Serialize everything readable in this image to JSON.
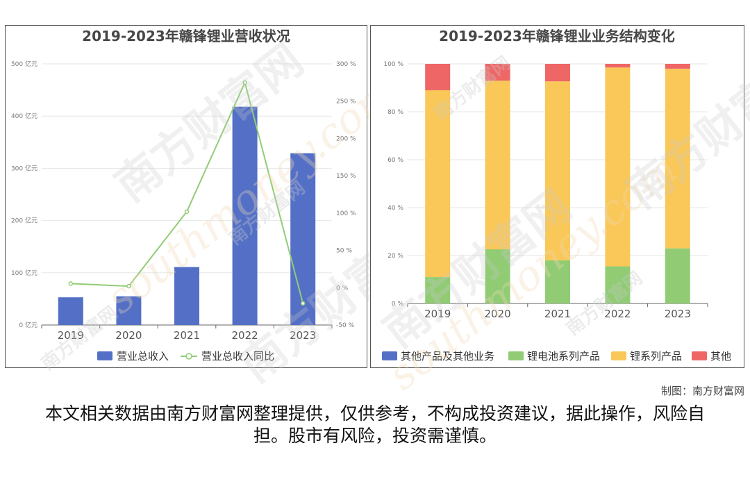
{
  "watermark": {
    "brand": "南方财富网",
    "url": "southmoney.com"
  },
  "credit": "制图：南方财富网",
  "disclaimer": "本文相关数据由南方财富网整理提供，仅供参考，不构成投资建议，据此操作，风险自担。股市有风险，投资需谨慎。",
  "chart_data": [
    {
      "type": "bar",
      "title": "2019-2023年赣锋锂业营收状况",
      "categories": [
        "2019",
        "2020",
        "2021",
        "2022",
        "2023"
      ],
      "left_axis": {
        "ylim": [
          0,
          500
        ],
        "ticks": [
          0,
          100,
          200,
          300,
          400,
          500
        ],
        "unit": "亿元"
      },
      "right_axis": {
        "ylim": [
          -50,
          300
        ],
        "ticks": [
          -50,
          0,
          50,
          100,
          150,
          200,
          250,
          300
        ],
        "unit": "%"
      },
      "series": [
        {
          "name": "营业总收入",
          "type": "bar",
          "axis": "left",
          "color": "#5470c6",
          "values": [
            53,
            55,
            111,
            418,
            329
          ]
        },
        {
          "name": "营业总收入同比",
          "type": "line",
          "axis": "right",
          "color": "#91cc75",
          "values": [
            5.5,
            2.0,
            102.0,
            275.0,
            -21.0
          ]
        }
      ],
      "legend": "bottom-center",
      "grid": true
    },
    {
      "type": "bar",
      "stacked": true,
      "title": "2019-2023年赣锋锂业业务结构变化",
      "categories": [
        "2019",
        "2020",
        "2021",
        "2022",
        "2023"
      ],
      "y_axis": {
        "ylim": [
          0,
          100
        ],
        "ticks": [
          0,
          20,
          40,
          60,
          80,
          100
        ],
        "unit": "%"
      },
      "series": [
        {
          "name": "其他产品及其他业务",
          "color": "#5470c6",
          "values": [
            0,
            0,
            0,
            0,
            0
          ]
        },
        {
          "name": "锂电池系列产品",
          "color": "#91cc75",
          "values": [
            11,
            22.6,
            18,
            15.5,
            23
          ]
        },
        {
          "name": "锂系列产品",
          "color": "#fac858",
          "values": [
            78,
            70.4,
            74.7,
            83,
            75
          ]
        },
        {
          "name": "其他",
          "color": "#ee6666",
          "values": [
            11,
            7,
            7.3,
            1.5,
            2
          ]
        }
      ],
      "legend": "bottom-center",
      "grid": true
    }
  ]
}
